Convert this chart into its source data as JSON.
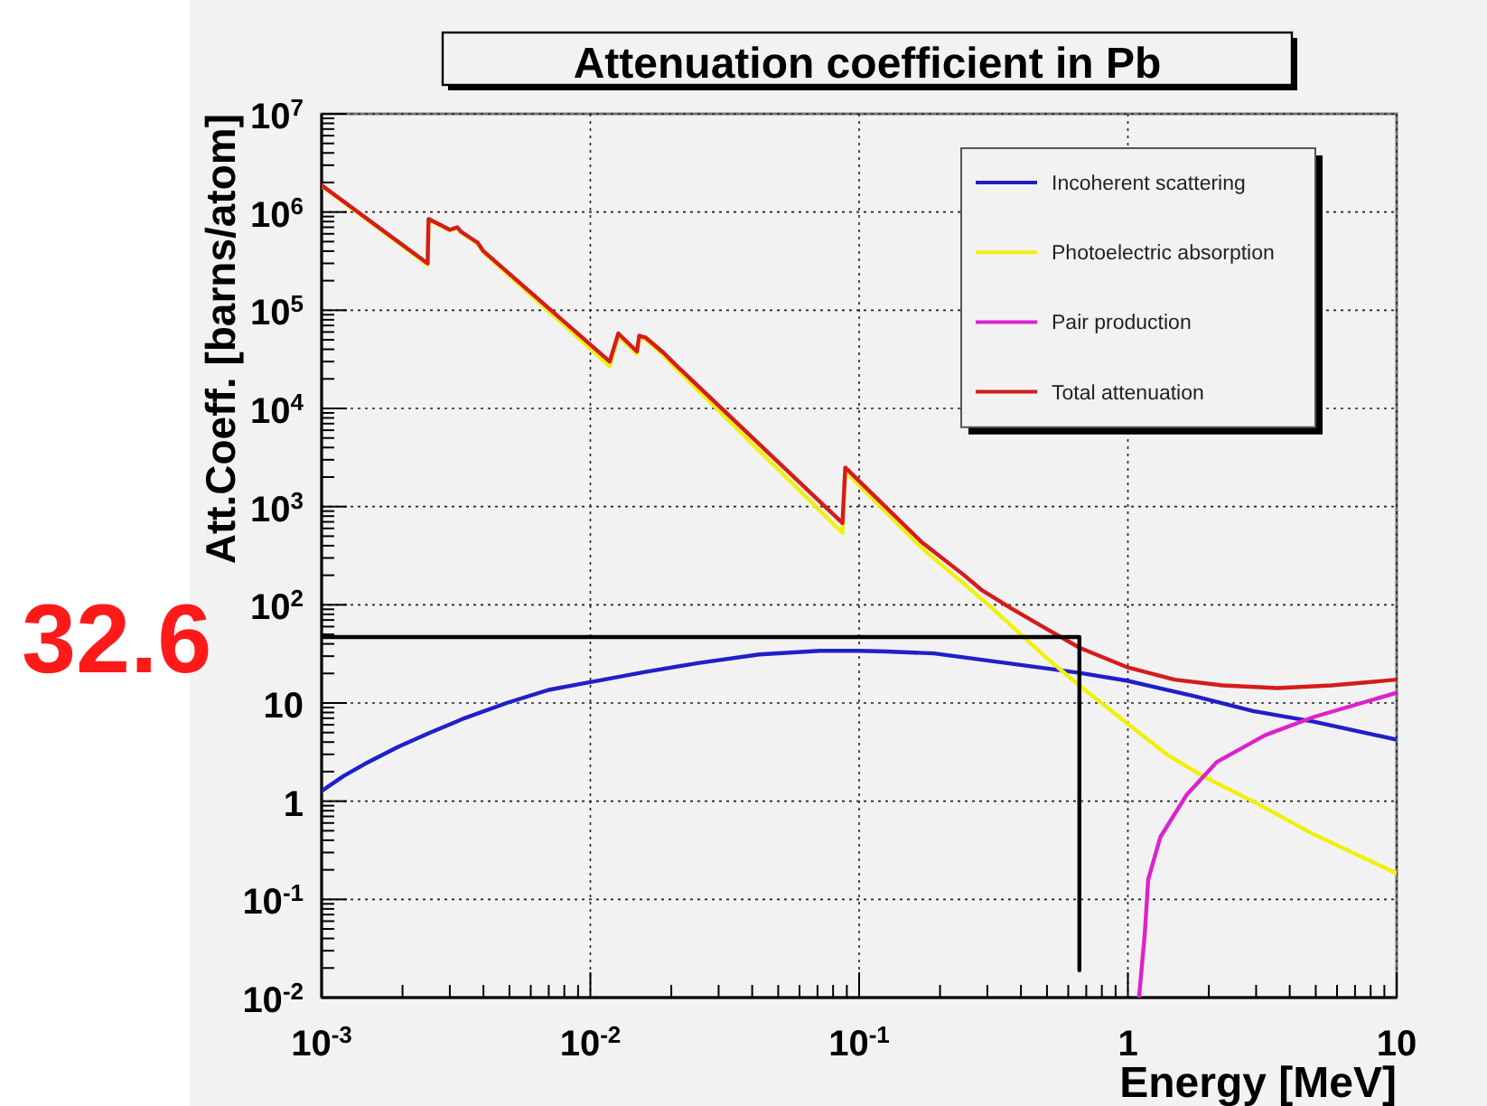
{
  "chart_data": {
    "type": "line",
    "title": "Attenuation coefficient in Pb",
    "xlabel": "Energy [MeV]",
    "ylabel": "Att.Coeff. [barns/atom]",
    "log": "xy",
    "grid": true,
    "legend": "top right",
    "xlim": [
      0.001,
      10
    ],
    "ylim": [
      0.01,
      10000000
    ],
    "xticks": [
      {
        "value": 0.001,
        "label": "10$^{-3}$"
      },
      {
        "value": 0.002,
        "label": null
      },
      {
        "value": 0.003,
        "label": null
      },
      {
        "value": 0.004,
        "label": null
      },
      {
        "value": 0.005,
        "label": null
      },
      {
        "value": 0.006,
        "label": null
      },
      {
        "value": 0.007,
        "label": null
      },
      {
        "value": 0.008,
        "label": null
      },
      {
        "value": 0.009,
        "label": null
      },
      {
        "value": 0.01,
        "label": "10$^{-2}$"
      },
      {
        "value": 0.02,
        "label": null
      },
      {
        "value": 0.03,
        "label": null
      },
      {
        "value": 0.04,
        "label": null
      },
      {
        "value": 0.05,
        "label": null
      },
      {
        "value": 0.06,
        "label": null
      },
      {
        "value": 0.07,
        "label": null
      },
      {
        "value": 0.08,
        "label": null
      },
      {
        "value": 0.09,
        "label": null
      },
      {
        "value": 0.1,
        "label": "10$^{-1}$"
      },
      {
        "value": 0.2,
        "label": null
      },
      {
        "value": 0.3,
        "label": null
      },
      {
        "value": 0.4,
        "label": null
      },
      {
        "value": 0.5,
        "label": null
      },
      {
        "value": 0.6,
        "label": null
      },
      {
        "value": 0.7,
        "label": null
      },
      {
        "value": 0.8,
        "label": null
      },
      {
        "value": 0.9,
        "label": null
      },
      1,
      {
        "value": 2,
        "label": null
      },
      {
        "value": 3,
        "label": null
      },
      {
        "value": 4,
        "label": null
      },
      {
        "value": 5,
        "label": null
      },
      {
        "value": 6,
        "label": null
      },
      {
        "value": 7,
        "label": null
      },
      {
        "value": 8,
        "label": null
      },
      {
        "value": 9,
        "label": null
      },
      10
    ],
    "yticks": [
      {
        "value": 0.01,
        "label": "10$^{-2}$"
      },
      {
        "value": 0.02,
        "label": null
      },
      {
        "value": 0.03,
        "label": null
      },
      {
        "value": 0.04,
        "label": null
      },
      {
        "value": 0.05,
        "label": null
      },
      {
        "value": 0.06,
        "label": null
      },
      {
        "value": 0.07,
        "label": null
      },
      {
        "value": 0.08,
        "label": null
      },
      {
        "value": 0.09,
        "label": null
      },
      {
        "value": 0.1,
        "label": "10$^{-1}$"
      },
      {
        "value": 0.2,
        "label": null
      },
      {
        "value": 0.3,
        "label": null
      },
      {
        "value": 0.4,
        "label": null
      },
      {
        "value": 0.5,
        "label": null
      },
      {
        "value": 0.6,
        "label": null
      },
      {
        "value": 0.7,
        "label": null
      },
      {
        "value": 0.8,
        "label": null
      },
      {
        "value": 0.9,
        "label": null
      },
      1,
      {
        "value": 2,
        "label": null
      },
      {
        "value": 3,
        "label": null
      },
      {
        "value": 4,
        "label": null
      },
      {
        "value": 5,
        "label": null
      },
      {
        "value": 6,
        "label": null
      },
      {
        "value": 7,
        "label": null
      },
      {
        "value": 8,
        "label": null
      },
      {
        "value": 9,
        "label": null
      },
      10,
      {
        "value": 20,
        "label": null
      },
      {
        "value": 30,
        "label": null
      },
      {
        "value": 40,
        "label": null
      },
      {
        "value": 50,
        "label": null
      },
      {
        "value": 60,
        "label": null
      },
      {
        "value": 70,
        "label": null
      },
      {
        "value": 80,
        "label": null
      },
      {
        "value": 90,
        "label": null
      },
      {
        "value": 100,
        "label": "10$^{2}$"
      },
      {
        "value": 200,
        "label": null
      },
      {
        "value": 300,
        "label": null
      },
      {
        "value": 400,
        "label": null
      },
      {
        "value": 500,
        "label": null
      },
      {
        "value": 600,
        "label": null
      },
      {
        "value": 700,
        "label": null
      },
      {
        "value": 800,
        "label": null
      },
      {
        "value": 900,
        "label": null
      },
      {
        "value": 1000,
        "label": "10$^{3}$"
      },
      {
        "value": 2000,
        "label": null
      },
      {
        "value": 3000,
        "label": null
      },
      {
        "value": 4000,
        "label": null
      },
      {
        "value": 5000,
        "label": null
      },
      {
        "value": 6000,
        "label": null
      },
      {
        "value": 7000,
        "label": null
      },
      {
        "value": 8000,
        "label": null
      },
      {
        "value": 9000,
        "label": null
      },
      {
        "value": 10000,
        "label": "10$^{4}$"
      },
      {
        "value": 20000,
        "label": null
      },
      {
        "value": 30000,
        "label": null
      },
      {
        "value": 40000,
        "label": null
      },
      {
        "value": 50000,
        "label": null
      },
      {
        "value": 60000,
        "label": null
      },
      {
        "value": 70000,
        "label": null
      },
      {
        "value": 80000,
        "label": null
      },
      {
        "value": 90000,
        "label": null
      },
      {
        "value": 100000,
        "label": "10$^{5}$"
      },
      {
        "value": 200000,
        "label": null
      },
      {
        "value": 300000,
        "label": null
      },
      {
        "value": 400000,
        "label": null
      },
      {
        "value": 500000,
        "label": null
      },
      {
        "value": 600000,
        "label": null
      },
      {
        "value": 700000,
        "label": null
      },
      {
        "value": 800000,
        "label": null
      },
      {
        "value": 900000,
        "label": null
      },
      {
        "value": 1000000,
        "label": "10$^{6}$"
      },
      {
        "value": 2000000,
        "label": null
      },
      {
        "value": 3000000,
        "label": null
      },
      {
        "value": 4000000,
        "label": null
      },
      {
        "value": 5000000,
        "label": null
      },
      {
        "value": 6000000,
        "label": null
      },
      {
        "value": 7000000,
        "label": null
      },
      {
        "value": 8000000,
        "label": null
      },
      {
        "value": 9000000,
        "label": null
      },
      {
        "value": 10000000,
        "label": "10$^{7}$"
      }
    ],
    "series": [
      {
        "name": "Incoherent scattering",
        "color": "#2020c8",
        "x": [
          0.001,
          0.00121,
          0.00149,
          0.00192,
          0.00249,
          0.0034,
          0.00488,
          0.007,
          0.01,
          0.016,
          0.0254,
          0.0426,
          0.0713,
          0.1,
          0.126,
          0.19,
          0.371,
          0.66,
          1,
          1.75,
          2.92,
          4.91,
          10
        ],
        "values": [
          1.27,
          1.81,
          2.5,
          3.56,
          4.9,
          7,
          10,
          13.6,
          16.3,
          20.7,
          25.6,
          31.2,
          34,
          34,
          33.5,
          32,
          25.1,
          20.3,
          16.8,
          11.8,
          8.3,
          6.46,
          4.24
        ]
      },
      {
        "name": "Photoelectric absorption",
        "color": "#f0f010",
        "x": [
          0.001,
          0.00248,
          0.0025,
          0.003,
          0.0032,
          0.0033,
          0.0036,
          0.0038,
          0.004,
          0.0118,
          0.0127,
          0.0149,
          0.0152,
          0.016,
          0.0187,
          0.0207,
          0.0867,
          0.0888,
          0.171,
          0.303,
          0.371,
          0.507,
          0.66,
          1,
          1.42,
          1.93,
          2.92,
          4.91,
          10
        ],
        "values": [
          1850000,
          290000,
          840000,
          650000,
          690000,
          620000,
          530000,
          480000,
          390000,
          27000,
          55000,
          36000,
          53000,
          51000,
          35000,
          26000,
          540,
          2300,
          380,
          100,
          60,
          27.6,
          15.1,
          6.1,
          2.9,
          1.76,
          1,
          0.46,
          0.184
        ]
      },
      {
        "name": "Pair production",
        "color": "#dd22cc",
        "x": [
          1.1,
          1.156,
          1.19,
          1.32,
          1.65,
          2.14,
          3.24,
          4.91,
          10
        ],
        "values": [
          0.01,
          0.045,
          0.159,
          0.43,
          1.15,
          2.5,
          4.7,
          7.2,
          12.7
        ]
      },
      {
        "name": "Total attenuation",
        "color": "#d41c1c",
        "x": [
          0.001,
          0.00248,
          0.0025,
          0.003,
          0.0032,
          0.0033,
          0.0036,
          0.0038,
          0.004,
          0.0118,
          0.0127,
          0.0149,
          0.0152,
          0.016,
          0.0187,
          0.0207,
          0.0867,
          0.0888,
          0.171,
          0.246,
          0.287,
          0.371,
          0.481,
          0.66,
          1,
          1.49,
          2.25,
          3.6,
          5.73,
          10
        ],
        "values": [
          1870000,
          300000,
          850000,
          660000,
          700000,
          630000,
          540000,
          490000,
          400000,
          30000,
          58000,
          38000,
          55000,
          53000,
          37000,
          28000,
          680,
          2500,
          434,
          200,
          140,
          91,
          60,
          36.6,
          23,
          17.3,
          15.1,
          14.2,
          15.1,
          17.3
        ]
      },
      {
        "color": "#000000",
        "x": [
          0.001,
          0.66,
          0.66
        ],
        "values": [
          47,
          47,
          0.019
        ]
      }
    ],
    "annotations": [
      "32.6"
    ]
  }
}
